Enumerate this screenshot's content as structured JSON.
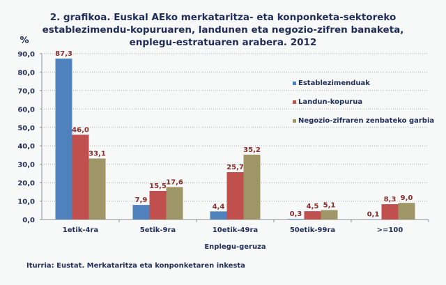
{
  "chart_data": {
    "type": "bar",
    "title": "2. grafikoa. Euskal AEko merkataritza- eta konponketa-sektoreko establezimendu-kopuruaren, landunen eta negozio-zifren banaketa, enplegu-estratuaren arabera. 2012",
    "title_lines": [
      "2. grafikoa. Euskal AEko merkataritza- eta konponketa-sektoreko",
      "establezimendu-kopuruaren, landunen eta negozio-zifren banaketa,",
      "enplegu-estratuaren arabera. 2012"
    ],
    "ylabel": "%",
    "xlabel": "Enplegu-geruza",
    "ylim": [
      0,
      90
    ],
    "yticks": [
      "0,0",
      "10,0",
      "20,0",
      "30,0",
      "40,0",
      "50,0",
      "60,0",
      "70,0",
      "80,0",
      "90,0"
    ],
    "grid": true,
    "legend_position": "right",
    "categories": [
      "1etik-4ra",
      "5etik-9ra",
      "10etik-49ra",
      "50etik-99ra",
      ">=100"
    ],
    "series": [
      {
        "name": "Establezimenduak",
        "color": "#4f81bd",
        "values": [
          87.3,
          7.9,
          4.4,
          0.3,
          0.1
        ],
        "labels": [
          "87,3",
          "7,9",
          "4,4",
          "0,3",
          "0,1"
        ]
      },
      {
        "name": "Landun-kopurua",
        "color": "#c0504d",
        "values": [
          46.0,
          15.5,
          25.7,
          4.5,
          8.3
        ],
        "labels": [
          "46,0",
          "15,5",
          "25,7",
          "4,5",
          "8,3"
        ]
      },
      {
        "name": "Negozio-zifraren zenbateko garbia",
        "color": "#9e9667",
        "values": [
          33.1,
          17.6,
          35.2,
          5.1,
          9.0
        ],
        "labels": [
          "33,1",
          "17,6",
          "35,2",
          "5,1",
          "9,0"
        ]
      }
    ],
    "data_label_color": "#8b2a2a"
  },
  "source": "Iturria: Eustat.  Merkataritza eta konponketaren inkesta"
}
